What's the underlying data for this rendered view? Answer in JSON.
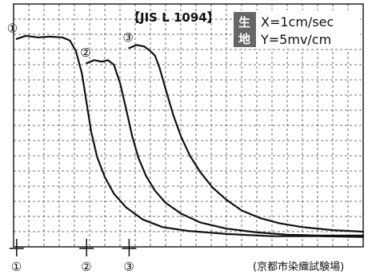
{
  "chart_data": {
    "type": "line",
    "title": "【JIS L 1094】",
    "fabric_label": [
      "生",
      "地"
    ],
    "scale_x": "X=1cm/sec",
    "scale_y": "Y=5mv/cm",
    "source": "(京都市染織試験場)",
    "grid": true,
    "xlim": [
      0,
      23
    ],
    "ylim": [
      0,
      16
    ],
    "series": [
      {
        "name": "①",
        "start_mark": "①",
        "start_x": 0.2,
        "points": [
          [
            0.2,
            13.7
          ],
          [
            0.8,
            13.9
          ],
          [
            1.6,
            13.8
          ],
          [
            2.4,
            13.85
          ],
          [
            3.2,
            13.8
          ],
          [
            3.7,
            13.6
          ],
          [
            4.1,
            12.9
          ],
          [
            4.5,
            11.4
          ],
          [
            4.8,
            9.5
          ],
          [
            5.1,
            7.6
          ],
          [
            5.5,
            5.9
          ],
          [
            6.0,
            4.6
          ],
          [
            6.6,
            3.5
          ],
          [
            7.4,
            2.6
          ],
          [
            8.5,
            1.8
          ],
          [
            9.8,
            1.3
          ],
          [
            11.5,
            1.05
          ],
          [
            14,
            0.85
          ],
          [
            17,
            0.7
          ],
          [
            20,
            0.7
          ],
          [
            23,
            0.65
          ]
        ]
      },
      {
        "name": "②",
        "start_mark": "②",
        "start_x": 4.8,
        "points": [
          [
            4.8,
            12.1
          ],
          [
            5.3,
            12.3
          ],
          [
            5.8,
            12.2
          ],
          [
            6.2,
            12.3
          ],
          [
            6.6,
            12.0
          ],
          [
            7.0,
            10.8
          ],
          [
            7.4,
            9.1
          ],
          [
            7.8,
            7.3
          ],
          [
            8.2,
            5.9
          ],
          [
            8.7,
            4.7
          ],
          [
            9.3,
            3.7
          ],
          [
            10.0,
            2.9
          ],
          [
            11.0,
            2.2
          ],
          [
            12.3,
            1.6
          ],
          [
            14,
            1.2
          ],
          [
            16,
            0.95
          ],
          [
            18,
            0.8
          ],
          [
            20,
            0.75
          ],
          [
            23,
            0.75
          ]
        ]
      },
      {
        "name": "③",
        "start_mark": "③",
        "start_x": 7.6,
        "points": [
          [
            7.6,
            13.1
          ],
          [
            8.1,
            13.3
          ],
          [
            8.6,
            13.2
          ],
          [
            9.0,
            12.9
          ],
          [
            9.3,
            12.6
          ],
          [
            9.6,
            11.8
          ],
          [
            10.0,
            10.4
          ],
          [
            10.5,
            8.7
          ],
          [
            11.0,
            7.3
          ],
          [
            11.6,
            6.0
          ],
          [
            12.3,
            4.9
          ],
          [
            13.1,
            3.9
          ],
          [
            14.0,
            3.1
          ],
          [
            15.0,
            2.4
          ],
          [
            16.2,
            1.9
          ],
          [
            17.5,
            1.55
          ],
          [
            19,
            1.3
          ],
          [
            21,
            1.1
          ],
          [
            23,
            1.0
          ]
        ]
      }
    ]
  },
  "colors": {
    "background": "#ffffff",
    "curve": "#111111",
    "grid": "#444444",
    "label_box": "#666666"
  }
}
